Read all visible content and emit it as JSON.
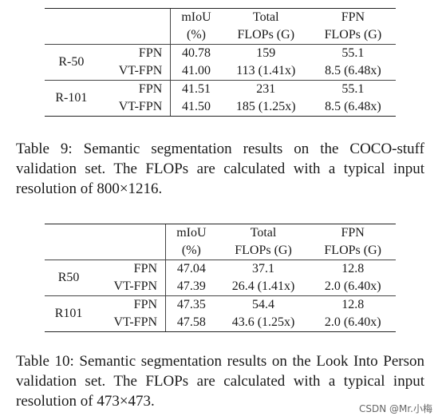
{
  "table9": {
    "headers": {
      "miou_1": "mIoU",
      "miou_2": "(%)",
      "total_1": "Total",
      "total_2": "FLOPs (G)",
      "fpn_1": "FPN",
      "fpn_2": "FLOPs (G)"
    },
    "groups": [
      {
        "model": "R-50",
        "rows": [
          {
            "method": "FPN",
            "miou": "40.78",
            "total": "159",
            "fpn": "55.1"
          },
          {
            "method": "VT-FPN",
            "miou": "41.00",
            "total": "113 (1.41x)",
            "fpn": "8.5 (6.48x)"
          }
        ]
      },
      {
        "model": "R-101",
        "rows": [
          {
            "method": "FPN",
            "miou": "41.51",
            "total": "231",
            "fpn": "55.1"
          },
          {
            "method": "VT-FPN",
            "miou": "41.50",
            "total": "185 (1.25x)",
            "fpn": "8.5 (6.48x)"
          }
        ]
      }
    ],
    "caption": "Table 9: Semantic segmentation results on the COCO-stuff validation set. The FLOPs are calculated with a typical input resolution of 800×1216."
  },
  "table10": {
    "headers": {
      "miou_1": "mIoU",
      "miou_2": "(%)",
      "total_1": "Total",
      "total_2": "FLOPs (G)",
      "fpn_1": "FPN",
      "fpn_2": "FLOPs (G)"
    },
    "groups": [
      {
        "model": "R50",
        "rows": [
          {
            "method": "FPN",
            "miou": "47.04",
            "total": "37.1",
            "fpn": "12.8"
          },
          {
            "method": "VT-FPN",
            "miou": "47.39",
            "total": "26.4 (1.41x)",
            "fpn": "2.0 (6.40x)"
          }
        ]
      },
      {
        "model": "R101",
        "rows": [
          {
            "method": "FPN",
            "miou": "47.35",
            "total": "54.4",
            "fpn": "12.8"
          },
          {
            "method": "VT-FPN",
            "miou": "47.58",
            "total": "43.6 (1.25x)",
            "fpn": "2.0 (6.40x)"
          }
        ]
      }
    ],
    "caption": "Table 10: Semantic segmentation results on the Look Into Person validation set. The FLOPs are calculated with a typical input resolution of 473×473."
  },
  "watermark": "CSDN @Mr.小梅"
}
